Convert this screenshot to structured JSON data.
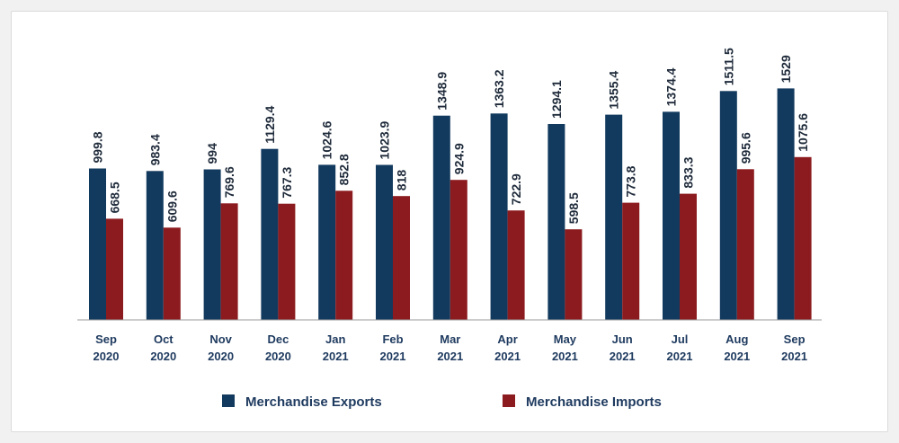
{
  "chart_data": {
    "type": "bar",
    "categories": [
      [
        "Sep",
        "2020"
      ],
      [
        "Oct",
        "2020"
      ],
      [
        "Nov",
        "2020"
      ],
      [
        "Dec",
        "2020"
      ],
      [
        "Jan",
        "2021"
      ],
      [
        "Feb",
        "2021"
      ],
      [
        "Mar",
        "2021"
      ],
      [
        "Apr",
        "2021"
      ],
      [
        "May",
        "2021"
      ],
      [
        "Jun",
        "2021"
      ],
      [
        "Jul",
        "2021"
      ],
      [
        "Aug",
        "2021"
      ],
      [
        "Sep",
        "2021"
      ]
    ],
    "series": [
      {
        "name": "Merchandise Exports",
        "color": "#123a5e",
        "values": [
          999.8,
          983.4,
          994,
          1129.4,
          1024.6,
          1023.9,
          1348.9,
          1363.2,
          1294.1,
          1355.4,
          1374.4,
          1511.5,
          1529
        ],
        "labels": [
          "999.8",
          "983.4",
          "994",
          "1129.4",
          "1024.6",
          "1023.9",
          "1348.9",
          "1363.2",
          "1294.1",
          "1355.4",
          "1374.4",
          "1511.5",
          "1529"
        ]
      },
      {
        "name": "Merchandise Imports",
        "color": "#8c1b1f",
        "values": [
          668.5,
          609.6,
          769.6,
          767.3,
          852.8,
          818,
          924.9,
          722.9,
          598.5,
          773.8,
          833.3,
          995.6,
          1075.6
        ],
        "labels": [
          "668.5",
          "609.6",
          "769.6",
          "767.3",
          "852.8",
          "818",
          "924.9",
          "722.9",
          "598.5",
          "773.8",
          "833.3",
          "995.6",
          "1075.6"
        ]
      }
    ],
    "ylim": [
      0,
      1650
    ],
    "grid": false,
    "legend": "bottom"
  }
}
